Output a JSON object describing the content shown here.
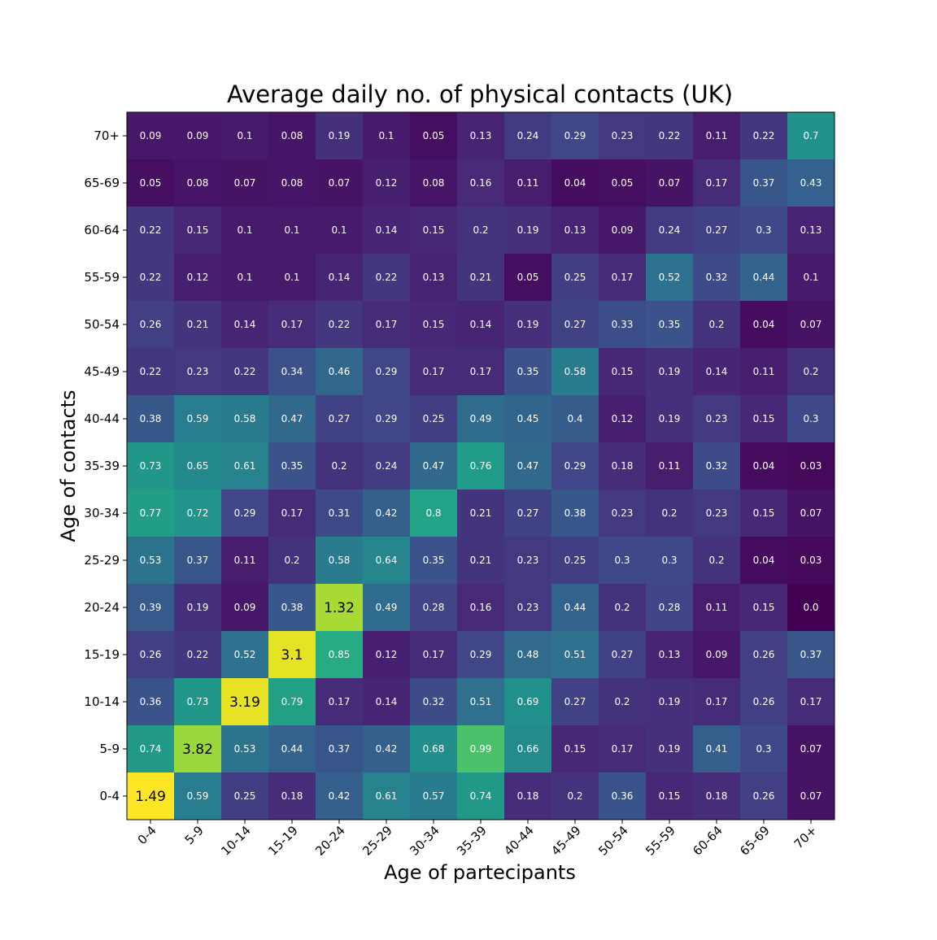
{
  "chart_data": {
    "type": "heatmap",
    "title": "Average daily no. of physical contacts (UK)",
    "xlabel": "Age of partecipants",
    "ylabel": "Age of contacts",
    "x_categories": [
      "0-4",
      "5-9",
      "10-14",
      "15-19",
      "20-24",
      "25-29",
      "30-34",
      "35-39",
      "40-44",
      "45-49",
      "50-54",
      "55-59",
      "60-64",
      "65-69",
      "70+"
    ],
    "y_categories": [
      "70+",
      "65-69",
      "60-64",
      "55-59",
      "50-54",
      "45-49",
      "40-44",
      "35-39",
      "30-34",
      "25-29",
      "20-24",
      "15-19",
      "10-14",
      "5-9",
      "0-4"
    ],
    "values": [
      [
        "0.09",
        "0.09",
        "0.1",
        "0.08",
        "0.19",
        "0.1",
        "0.05",
        "0.13",
        "0.24",
        "0.29",
        "0.23",
        "0.22",
        "0.11",
        "0.22",
        "0.7"
      ],
      [
        "0.05",
        "0.08",
        "0.07",
        "0.08",
        "0.07",
        "0.12",
        "0.08",
        "0.16",
        "0.11",
        "0.04",
        "0.05",
        "0.07",
        "0.17",
        "0.37",
        "0.43"
      ],
      [
        "0.22",
        "0.15",
        "0.1",
        "0.1",
        "0.1",
        "0.14",
        "0.15",
        "0.2",
        "0.19",
        "0.13",
        "0.09",
        "0.24",
        "0.27",
        "0.3",
        "0.13"
      ],
      [
        "0.22",
        "0.12",
        "0.1",
        "0.1",
        "0.14",
        "0.22",
        "0.13",
        "0.21",
        "0.05",
        "0.25",
        "0.17",
        "0.52",
        "0.32",
        "0.44",
        "0.1"
      ],
      [
        "0.26",
        "0.21",
        "0.14",
        "0.17",
        "0.22",
        "0.17",
        "0.15",
        "0.14",
        "0.19",
        "0.27",
        "0.33",
        "0.35",
        "0.2",
        "0.04",
        "0.07"
      ],
      [
        "0.22",
        "0.23",
        "0.22",
        "0.34",
        "0.46",
        "0.29",
        "0.17",
        "0.17",
        "0.35",
        "0.58",
        "0.15",
        "0.19",
        "0.14",
        "0.11",
        "0.2"
      ],
      [
        "0.38",
        "0.59",
        "0.58",
        "0.47",
        "0.27",
        "0.29",
        "0.25",
        "0.49",
        "0.45",
        "0.4",
        "0.12",
        "0.19",
        "0.23",
        "0.15",
        "0.3"
      ],
      [
        "0.73",
        "0.65",
        "0.61",
        "0.35",
        "0.2",
        "0.24",
        "0.47",
        "0.76",
        "0.47",
        "0.29",
        "0.18",
        "0.11",
        "0.32",
        "0.04",
        "0.03"
      ],
      [
        "0.77",
        "0.72",
        "0.29",
        "0.17",
        "0.31",
        "0.42",
        "0.8",
        "0.21",
        "0.27",
        "0.38",
        "0.23",
        "0.2",
        "0.23",
        "0.15",
        "0.07"
      ],
      [
        "0.53",
        "0.37",
        "0.11",
        "0.2",
        "0.58",
        "0.64",
        "0.35",
        "0.21",
        "0.23",
        "0.25",
        "0.3",
        "0.3",
        "0.2",
        "0.04",
        "0.03"
      ],
      [
        "0.39",
        "0.19",
        "0.09",
        "0.38",
        "1.32",
        "0.49",
        "0.28",
        "0.16",
        "0.23",
        "0.44",
        "0.2",
        "0.28",
        "0.11",
        "0.15",
        "0.0"
      ],
      [
        "0.26",
        "0.22",
        "0.52",
        "3.1",
        "0.85",
        "0.12",
        "0.17",
        "0.29",
        "0.48",
        "0.51",
        "0.27",
        "0.13",
        "0.09",
        "0.26",
        "0.37"
      ],
      [
        "0.36",
        "0.73",
        "3.19",
        "0.79",
        "0.17",
        "0.14",
        "0.32",
        "0.51",
        "0.69",
        "0.27",
        "0.2",
        "0.19",
        "0.17",
        "0.26",
        "0.17"
      ],
      [
        "0.74",
        "3.82",
        "0.53",
        "0.44",
        "0.37",
        "0.42",
        "0.68",
        "0.99",
        "0.66",
        "0.15",
        "0.17",
        "0.19",
        "0.41",
        "0.3",
        "0.07"
      ],
      [
        "1.49",
        "0.59",
        "0.25",
        "0.18",
        "0.42",
        "0.61",
        "0.57",
        "0.74",
        "0.18",
        "0.2",
        "0.36",
        "0.15",
        "0.18",
        "0.26",
        "0.07"
      ]
    ],
    "colormap": "viridis",
    "grid": false,
    "legend": "none"
  }
}
